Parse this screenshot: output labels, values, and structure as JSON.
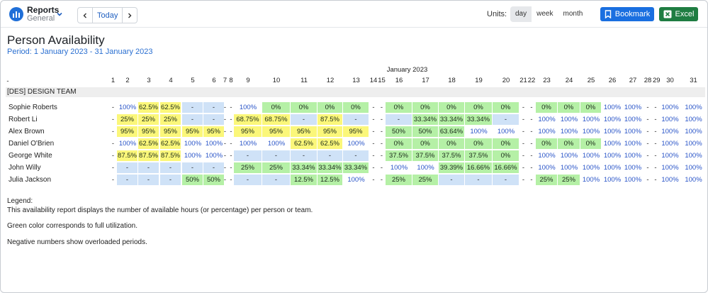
{
  "header": {
    "app_title": "Reports",
    "app_subtitle": "General",
    "today_label": "Today",
    "units_label": "Units:",
    "units": [
      {
        "label": "day",
        "active": true
      },
      {
        "label": "week",
        "active": false
      },
      {
        "label": "month",
        "active": false
      }
    ],
    "bookmark_label": "Bookmark",
    "excel_label": "Excel"
  },
  "colors": {
    "accent": "#1a6fe0",
    "excel": "#1f7d42",
    "green": "#b5f0a6",
    "yellow": "#fbf77a",
    "blue": "#cfe2f7",
    "grey": "#e4e4e4",
    "link": "#2a55c8"
  },
  "page": {
    "title": "Person Availability",
    "period": "Period: 1 January 2023 - 31 January 2023"
  },
  "table": {
    "month_label": "January 2023",
    "corner_label": "-",
    "team_label": "[DES] DESIGN TEAM",
    "days": [
      "1",
      "2",
      "3",
      "4",
      "5",
      "6",
      "7",
      "8",
      "9",
      "10",
      "11",
      "12",
      "13",
      "14",
      "15",
      "16",
      "17",
      "18",
      "19",
      "20",
      "21",
      "22",
      "23",
      "24",
      "25",
      "26",
      "27",
      "28",
      "29",
      "30",
      "31"
    ],
    "rows": [
      {
        "name": "Sophie Roberts",
        "values": [
          "-",
          "100%",
          "62.5%",
          "62.5%",
          "-",
          "-",
          "-",
          "-",
          "100%",
          "0%",
          "0%",
          "0%",
          "0%",
          "-",
          "-",
          "0%",
          "0%",
          "0%",
          "0%",
          "0%",
          "-",
          "-",
          "0%",
          "0%",
          "0%",
          "100%",
          "100%",
          "-",
          "-",
          "100%",
          "100%"
        ],
        "colors": [
          "n",
          "n",
          "y",
          "y",
          "b",
          "b",
          "n",
          "n",
          "n",
          "g",
          "g",
          "g",
          "g",
          "n",
          "n",
          "g",
          "g",
          "g",
          "g",
          "g",
          "n",
          "n",
          "g",
          "g",
          "g",
          "n",
          "n",
          "n",
          "n",
          "n",
          "n"
        ]
      },
      {
        "name": "Robert Li",
        "values": [
          "-",
          "25%",
          "25%",
          "25%",
          "-",
          "-",
          "-",
          "-",
          "68.75%",
          "68.75%",
          "-",
          "87.5%",
          "-",
          "-",
          "-",
          "-",
          "33.34%",
          "33.34%",
          "33.34%",
          "-",
          "-",
          "-",
          "100%",
          "100%",
          "100%",
          "100%",
          "100%",
          "-",
          "-",
          "100%",
          "100%"
        ],
        "colors": [
          "n",
          "y",
          "y",
          "y",
          "b",
          "b",
          "n",
          "n",
          "y",
          "y",
          "b",
          "y",
          "b",
          "n",
          "n",
          "b",
          "g",
          "g",
          "g",
          "b",
          "n",
          "n",
          "n",
          "n",
          "n",
          "n",
          "n",
          "n",
          "n",
          "n",
          "n"
        ]
      },
      {
        "name": "Alex Brown",
        "values": [
          "-",
          "95%",
          "95%",
          "95%",
          "95%",
          "95%",
          "-",
          "-",
          "95%",
          "95%",
          "95%",
          "95%",
          "95%",
          "-",
          "-",
          "50%",
          "50%",
          "63.64%",
          "100%",
          "100%",
          "-",
          "-",
          "100%",
          "100%",
          "100%",
          "100%",
          "100%",
          "-",
          "-",
          "100%",
          "100%"
        ],
        "colors": [
          "n",
          "y",
          "y",
          "y",
          "y",
          "y",
          "n",
          "n",
          "y",
          "y",
          "y",
          "y",
          "y",
          "n",
          "n",
          "g",
          "g",
          "g",
          "n",
          "n",
          "n",
          "n",
          "n",
          "n",
          "n",
          "n",
          "n",
          "n",
          "n",
          "n",
          "n"
        ]
      },
      {
        "name": "Daniel O'Brien",
        "values": [
          "-",
          "100%",
          "62.5%",
          "62.5%",
          "100%",
          "100%",
          "-",
          "-",
          "100%",
          "100%",
          "62.5%",
          "62.5%",
          "100%",
          "-",
          "-",
          "0%",
          "0%",
          "0%",
          "0%",
          "0%",
          "-",
          "-",
          "0%",
          "0%",
          "0%",
          "100%",
          "100%",
          "-",
          "-",
          "100%",
          "100%"
        ],
        "colors": [
          "n",
          "n",
          "y",
          "y",
          "n",
          "n",
          "n",
          "n",
          "n",
          "n",
          "y",
          "y",
          "n",
          "n",
          "n",
          "g",
          "g",
          "g",
          "g",
          "g",
          "n",
          "n",
          "g",
          "g",
          "g",
          "n",
          "n",
          "n",
          "n",
          "n",
          "n"
        ]
      },
      {
        "name": "George White",
        "values": [
          "-",
          "87.5%",
          "87.5%",
          "87.5%",
          "100%",
          "100%",
          "-",
          "-",
          "-",
          "-",
          "-",
          "-",
          "-",
          "-",
          "-",
          "37.5%",
          "37.5%",
          "37.5%",
          "37.5%",
          "0%",
          "-",
          "-",
          "100%",
          "100%",
          "100%",
          "100%",
          "100%",
          "-",
          "-",
          "100%",
          "100%"
        ],
        "colors": [
          "n",
          "y",
          "y",
          "y",
          "n",
          "n",
          "n",
          "n",
          "b",
          "b",
          "b",
          "b",
          "b",
          "n",
          "n",
          "g",
          "g",
          "g",
          "g",
          "g",
          "n",
          "n",
          "n",
          "n",
          "n",
          "n",
          "n",
          "n",
          "n",
          "n",
          "n"
        ]
      },
      {
        "name": "John Willy",
        "values": [
          "-",
          "-",
          "-",
          "-",
          "-",
          "-",
          "-",
          "-",
          "25%",
          "25%",
          "33.34%",
          "33.34%",
          "33.34%",
          "-",
          "-",
          "100%",
          "100%",
          "39.39%",
          "16.66%",
          "16.66%",
          "-",
          "-",
          "100%",
          "100%",
          "100%",
          "100%",
          "100%",
          "-",
          "-",
          "100%",
          "100%"
        ],
        "colors": [
          "n",
          "b",
          "b",
          "b",
          "b",
          "b",
          "n",
          "n",
          "g",
          "g",
          "g",
          "g",
          "g",
          "n",
          "n",
          "n",
          "n",
          "g",
          "g",
          "g",
          "n",
          "n",
          "n",
          "n",
          "n",
          "n",
          "n",
          "n",
          "n",
          "n",
          "n"
        ]
      },
      {
        "name": "Julia Jackson",
        "values": [
          "-",
          "-",
          "-",
          "-",
          "50%",
          "50%",
          "-",
          "-",
          "-",
          "-",
          "12.5%",
          "12.5%",
          "100%",
          "-",
          "-",
          "25%",
          "25%",
          "-",
          "-",
          "-",
          "-",
          "-",
          "25%",
          "25%",
          "100%",
          "100%",
          "100%",
          "-",
          "-",
          "100%",
          "100%"
        ],
        "colors": [
          "n",
          "b",
          "b",
          "b",
          "g",
          "g",
          "n",
          "n",
          "b",
          "b",
          "g",
          "g",
          "n",
          "n",
          "n",
          "g",
          "g",
          "b",
          "b",
          "b",
          "n",
          "n",
          "g",
          "g",
          "n",
          "n",
          "n",
          "n",
          "n",
          "n",
          "n"
        ]
      }
    ]
  },
  "legend": {
    "title": "Legend:",
    "line1": "This availability report displays the number of available hours (or percentage) per person or team.",
    "line2": "Green color corresponds to full utilization.",
    "line3": "Negative numbers show overloaded periods."
  }
}
